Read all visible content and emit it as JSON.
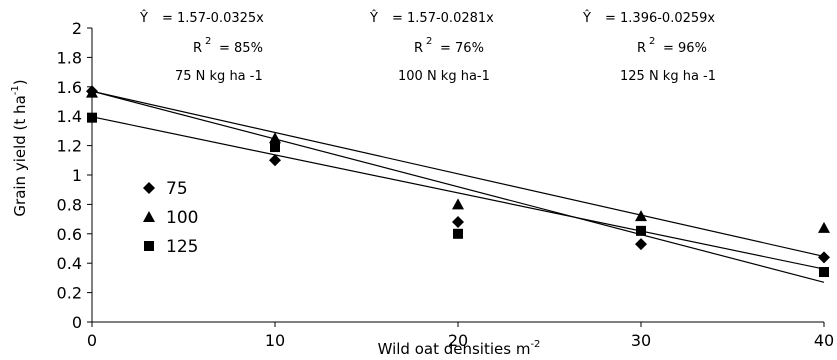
{
  "chart_data": {
    "type": "scatter",
    "xlabel": "Wild oat densities m",
    "xlabel_sup": "-2",
    "ylabel_pre": "Grain yield (t ha",
    "ylabel_sup": "-1",
    "ylabel_post": ")",
    "x_ticks": [
      "0",
      "10",
      "20",
      "30",
      "40"
    ],
    "y_ticks": [
      "0",
      "0.2",
      "0.4",
      "0.6",
      "0.8",
      "1",
      "1.2",
      "1.4",
      "1.6",
      "1.8",
      "2"
    ],
    "xlim": [
      0,
      40
    ],
    "ylim": [
      0,
      2
    ],
    "grid": false,
    "legend_position": "left-center",
    "series": [
      {
        "name": "75",
        "marker": "diamond",
        "x": [
          0,
          10,
          20,
          30,
          40
        ],
        "y": [
          1.57,
          1.1,
          0.68,
          0.53,
          0.44
        ],
        "fit": {
          "intercept": 1.57,
          "slope": -0.0325
        }
      },
      {
        "name": "100",
        "marker": "triangle",
        "x": [
          0,
          10,
          20,
          30,
          40
        ],
        "y": [
          1.56,
          1.25,
          0.8,
          0.72,
          0.64
        ],
        "fit": {
          "intercept": 1.57,
          "slope": -0.0281
        }
      },
      {
        "name": "125",
        "marker": "square",
        "x": [
          0,
          10,
          20,
          30,
          40
        ],
        "y": [
          1.39,
          1.19,
          0.6,
          0.62,
          0.34
        ],
        "fit": {
          "intercept": 1.396,
          "slope": -0.0259
        }
      }
    ],
    "annotations": [
      {
        "yhat": "Ŷ",
        "equation": "= 1.57-0.0325x",
        "r2_label": "R",
        "r2_sup": "2",
        "r2_value": "= 85%",
        "treatment": "75 N kg ha -1"
      },
      {
        "yhat": "Ŷ",
        "equation": "= 1.57-0.0281x",
        "r2_label": "R",
        "r2_sup": "2",
        "r2_value": "= 76%",
        "treatment": "100 N kg ha-1"
      },
      {
        "yhat": "Ŷ",
        "equation": "= 1.396-0.0259x",
        "r2_label": "R",
        "r2_sup": "2",
        "r2_value": "= 96%",
        "treatment": "125 N kg ha -1"
      }
    ]
  }
}
